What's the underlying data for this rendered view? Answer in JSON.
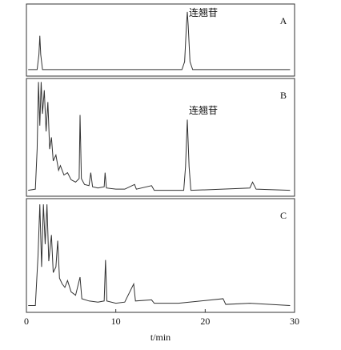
{
  "chart_data": [
    {
      "type": "line",
      "label": "A",
      "annotation": "连翘苷",
      "annotation_x": 18,
      "color": "#333333",
      "xlim": [
        0,
        30
      ],
      "ylim": [
        0,
        100
      ],
      "x": [
        0.2,
        1.2,
        1.4,
        1.5,
        1.6,
        1.8,
        17.4,
        17.7,
        17.9,
        18,
        18.1,
        18.3,
        18.6,
        29.5
      ],
      "values": [
        9,
        9,
        30,
        56,
        30,
        9,
        9,
        20,
        70,
        89,
        70,
        20,
        9,
        9
      ]
    },
    {
      "type": "line",
      "label": "B",
      "annotation": "连翘苷",
      "annotation_x": 18,
      "color": "#333333",
      "xlim": [
        0,
        30
      ],
      "ylim": [
        0,
        100
      ],
      "x": [
        0.2,
        1.0,
        1.2,
        1.35,
        1.5,
        1.65,
        1.8,
        2.0,
        2.2,
        2.4,
        2.6,
        2.8,
        3.0,
        3.3,
        3.6,
        3.8,
        4.2,
        4.6,
        5.0,
        5.5,
        5.9,
        6.0,
        6.15,
        6.5,
        7.0,
        7.2,
        7.4,
        8.0,
        8.7,
        8.8,
        8.95,
        10,
        11,
        12.1,
        12.3,
        14,
        14.3,
        17.6,
        17.8,
        18,
        18.2,
        18.4,
        22,
        25,
        25.3,
        25.7,
        29.5
      ],
      "values": [
        5,
        6,
        40,
        97,
        60,
        97,
        70,
        90,
        55,
        80,
        40,
        50,
        30,
        35,
        22,
        26,
        18,
        20,
        14,
        12,
        15,
        69,
        15,
        10,
        9,
        20,
        8,
        7,
        8,
        20,
        7,
        6,
        6,
        10,
        6,
        9,
        5,
        5,
        25,
        65,
        25,
        5,
        6,
        7,
        12,
        6,
        5
      ]
    },
    {
      "type": "line",
      "label": "C",
      "color": "#333333",
      "xlim": [
        0,
        30
      ],
      "ylim": [
        0,
        100
      ],
      "xticks": [
        0,
        10,
        20,
        30
      ],
      "xlabel": "t/min",
      "x": [
        0.2,
        1.0,
        1.3,
        1.5,
        1.7,
        1.9,
        2.1,
        2.3,
        2.5,
        2.8,
        3.0,
        3.3,
        3.5,
        3.7,
        4.0,
        4.3,
        4.6,
        5.0,
        5.5,
        6.0,
        6.2,
        7,
        8,
        8.7,
        8.85,
        9.0,
        10,
        11,
        12,
        12.2,
        14,
        14.3,
        17,
        22,
        22.3,
        25,
        29.5
      ],
      "values": [
        6,
        6,
        50,
        95,
        40,
        95,
        60,
        95,
        45,
        68,
        35,
        40,
        63,
        30,
        25,
        22,
        28,
        18,
        15,
        31,
        12,
        10,
        9,
        10,
        46,
        10,
        8,
        9,
        25,
        10,
        11,
        8,
        8,
        12,
        7,
        8,
        6
      ]
    }
  ]
}
